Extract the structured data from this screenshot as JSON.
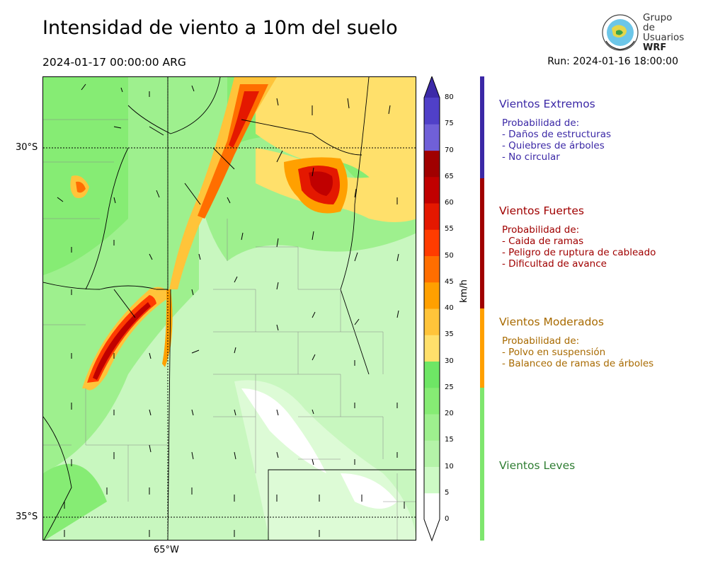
{
  "header": {
    "title": "Intensidad de viento a 10m del suelo",
    "valid_time": "2024-01-17 00:00:00 ARG",
    "run_time": "Run: 2024-01-16 18:00:00"
  },
  "logo": {
    "line1": "Grupo de",
    "line2": "Usuarios",
    "line3": "WRF"
  },
  "map": {
    "lat_labels": [
      "30°S",
      "35°S"
    ],
    "lon_labels": [
      "65°W"
    ]
  },
  "colorbar": {
    "unit_label": "km/h",
    "ticks": [
      "0",
      "5",
      "10",
      "15",
      "20",
      "25",
      "30",
      "35",
      "40",
      "45",
      "50",
      "55",
      "60",
      "65",
      "70",
      "75",
      "80"
    ],
    "colors": [
      "#ffffff",
      "#cdfac5",
      "#b4f3a8",
      "#9ef08e",
      "#86ec74",
      "#6ee665",
      "#ffe06b",
      "#ffc43a",
      "#ffa000",
      "#ff6e00",
      "#ff3c00",
      "#e41800",
      "#c00000",
      "#a00000",
      "#7060d8",
      "#5040c8",
      "#3c2aa8"
    ]
  },
  "categories": [
    {
      "name": "Vientos Extremos",
      "color": "#3b28a6",
      "lines": [
        "Probabilidad de:",
        "- Daños de estructuras",
        "- Quiebres de árboles",
        "- No circular"
      ]
    },
    {
      "name": "Vientos Fuertes",
      "color": "#a00000",
      "lines": [
        "Probabilidad de:",
        "- Caida de ramas",
        "- Peligro de ruptura de cableado",
        "- Dificultad de avance"
      ]
    },
    {
      "name": "Vientos Moderados",
      "color": "#a86a00",
      "lines": [
        "Probabilidad de:",
        "- Polvo en suspensión",
        "- Balanceo de ramas de árboles"
      ]
    },
    {
      "name": "Vientos Leves",
      "color": "#2e7d32",
      "lines": []
    }
  ]
}
